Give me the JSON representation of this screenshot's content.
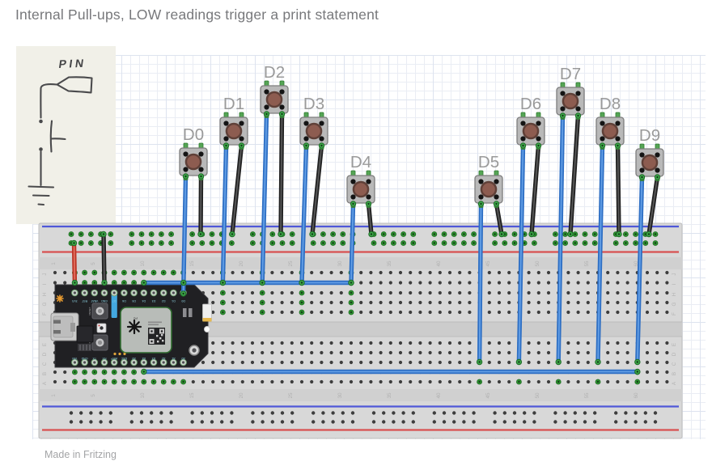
{
  "title": "Internal Pull-ups, LOW readings trigger a print statement",
  "footer": "Made in Fritzing",
  "schematic": {
    "pin_label": "PIN"
  },
  "buttons": [
    {
      "id": "d0",
      "label": "D0"
    },
    {
      "id": "d1",
      "label": "D1"
    },
    {
      "id": "d2",
      "label": "D2"
    },
    {
      "id": "d3",
      "label": "D3"
    },
    {
      "id": "d4",
      "label": "D4"
    },
    {
      "id": "d5",
      "label": "D5"
    },
    {
      "id": "d6",
      "label": "D6"
    },
    {
      "id": "d7",
      "label": "D7"
    },
    {
      "id": "d8",
      "label": "D8"
    },
    {
      "id": "d9",
      "label": "D9"
    }
  ],
  "breadboard": {
    "column_numbers": [
      "1",
      "5",
      "10",
      "15",
      "20",
      "25",
      "30",
      "35",
      "40",
      "45",
      "50",
      "55",
      "60"
    ],
    "row_letters_top": [
      "J",
      "I",
      "H",
      "G",
      "F"
    ],
    "row_letters_bottom": [
      "E",
      "D",
      "C",
      "B",
      "A"
    ]
  },
  "photon": {
    "top_pins": [
      "3V3",
      "RST",
      "VBAT",
      "GND",
      "D7",
      "D6",
      "D5",
      "D4",
      "D3",
      "D2",
      "D1",
      "D0"
    ],
    "bottom_pins": [
      "VIN",
      "GND",
      "TX",
      "RX",
      "WKP",
      "DAC",
      "A5",
      "A4",
      "A3",
      "A2",
      "A1",
      "A0"
    ],
    "reset_label": "RESET",
    "setup_label": "SETUP",
    "module_label": "P0"
  },
  "colors": {
    "signal_wire_blue": "#2e6fc4",
    "signal_wire_blue_highlight": "#639fe6",
    "ground_wire_black": "#212121",
    "ground_wire_black_highlight": "#585858",
    "power_wire_red": "#bc3426",
    "power_wire_red_highlight": "#e2705f",
    "rail_negative_blue": "#5058d8",
    "rail_positive_red": "#d85050",
    "connected_hole_green": "#2f9432",
    "wire_end_green": "#3fa84b",
    "component_leg_green": "#55a555",
    "button_cap_brown": "#8d5c50",
    "breadboard_body": "#d8d8d8",
    "photon_board_black": "#202023",
    "silkscreen_cyan": "#8fd4e4"
  }
}
